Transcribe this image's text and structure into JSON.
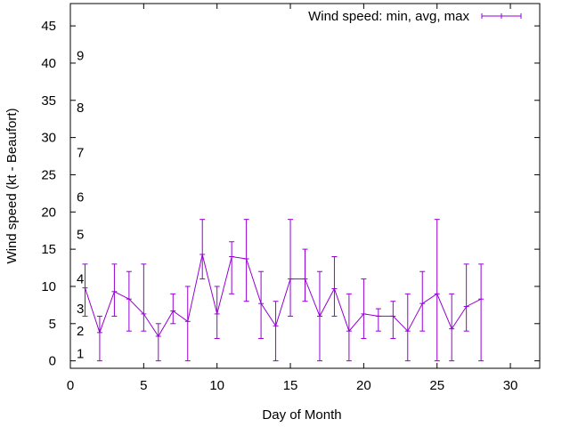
{
  "chart_data": {
    "type": "line",
    "title": "",
    "xlabel": "Day of Month",
    "ylabel": "Wind speed (kt - Beaufort)",
    "xlim": [
      0,
      32
    ],
    "ylim": [
      -1,
      48
    ],
    "x_ticks": [
      0,
      5,
      10,
      15,
      20,
      25,
      30
    ],
    "y_ticks": [
      0,
      5,
      10,
      15,
      20,
      25,
      30,
      35,
      40,
      45
    ],
    "grid": false,
    "legend_position": "top-right",
    "beaufort_labels": [
      {
        "label": "1",
        "y": 1
      },
      {
        "label": "2",
        "y": 4
      },
      {
        "label": "3",
        "y": 7
      },
      {
        "label": "4",
        "y": 11
      },
      {
        "label": "5",
        "y": 17
      },
      {
        "label": "6",
        "y": 22
      },
      {
        "label": "7",
        "y": 28
      },
      {
        "label": "8",
        "y": 34
      },
      {
        "label": "9",
        "y": 41
      }
    ],
    "series": [
      {
        "name": "Wind speed: min, avg, max",
        "color": "#9400d3",
        "x": [
          1,
          2,
          3,
          4,
          5,
          6,
          7,
          8,
          9,
          10,
          11,
          12,
          13,
          14,
          15,
          16,
          17,
          18,
          19,
          20,
          21,
          22,
          23,
          24,
          25,
          26,
          27,
          28
        ],
        "avg": [
          9.8,
          3.8,
          9.3,
          8.3,
          6.3,
          3.3,
          6.7,
          5.3,
          14.3,
          6.3,
          14.0,
          13.7,
          7.7,
          4.7,
          11.0,
          11.0,
          6.0,
          9.7,
          4.0,
          6.3,
          6.0,
          6.0,
          4.0,
          7.7,
          9.0,
          4.3,
          7.3,
          8.3
        ],
        "min": [
          6,
          0,
          6,
          4,
          4,
          0,
          5,
          0,
          11,
          3,
          9,
          8,
          3,
          0,
          6,
          8,
          0,
          6,
          0,
          3,
          4,
          3,
          0,
          4,
          0,
          0,
          4,
          0
        ],
        "max": [
          13,
          6,
          13,
          12,
          13,
          5,
          9,
          10,
          19,
          10,
          16,
          19,
          12,
          8,
          19,
          15,
          12,
          14,
          9,
          11,
          7,
          8,
          9,
          12,
          19,
          9,
          13,
          13
        ]
      }
    ]
  }
}
